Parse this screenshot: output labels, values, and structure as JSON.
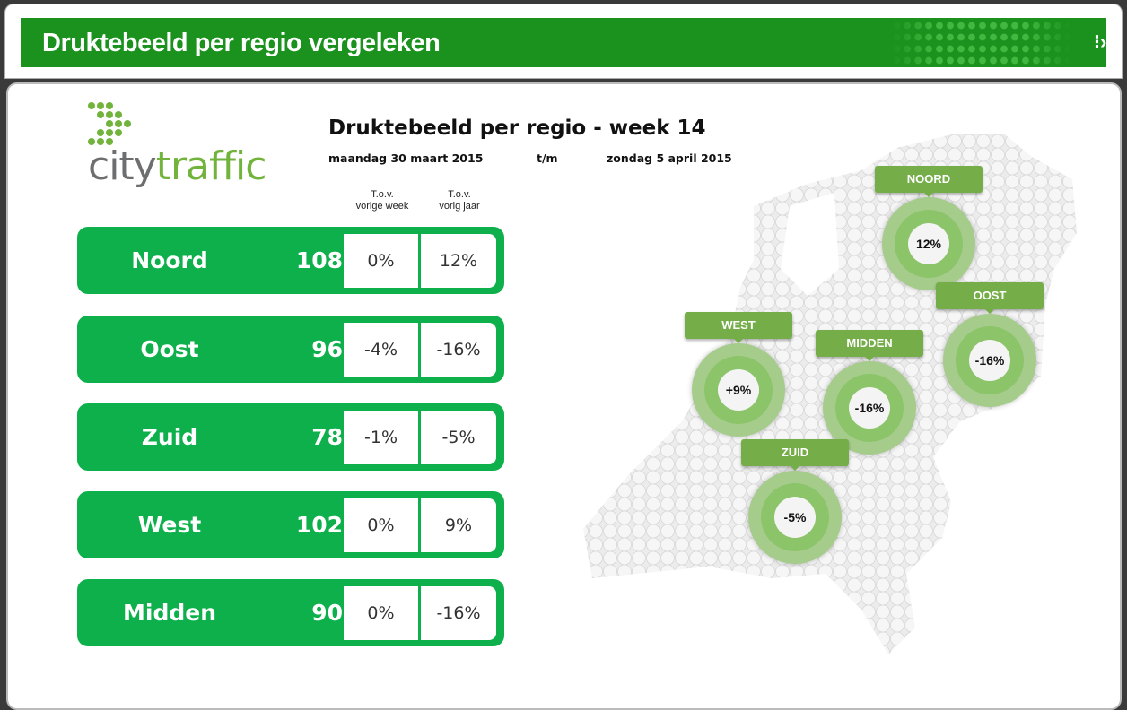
{
  "header": {
    "title": "Druktebeeld per regio vergeleken"
  },
  "logo": {
    "text_city": "city",
    "text_traffic": "traffic"
  },
  "report": {
    "title": "Druktebeeld per regio - week 14",
    "date_from": "maandag 30 maart 2015",
    "date_sep": "t/m",
    "date_to": "zondag 5 april 2015"
  },
  "columns": {
    "prev_week": [
      "T.o.v.",
      "vorige week"
    ],
    "prev_year": [
      "T.o.v.",
      "vorig jaar"
    ]
  },
  "regions": [
    {
      "name": "Noord",
      "value": "108",
      "vs_week": "0%",
      "vs_year": "12%"
    },
    {
      "name": "Oost",
      "value": "96",
      "vs_week": "-4%",
      "vs_year": "-16%"
    },
    {
      "name": "Zuid",
      "value": "78",
      "vs_week": "-1%",
      "vs_year": "-5%"
    },
    {
      "name": "West",
      "value": "102",
      "vs_week": "0%",
      "vs_year": "9%"
    },
    {
      "name": "Midden",
      "value": "90",
      "vs_week": "0%",
      "vs_year": "-16%"
    }
  ],
  "map_badges": [
    {
      "label": "NOORD",
      "value": "12%"
    },
    {
      "label": "OOST",
      "value": "-16%"
    },
    {
      "label": "WEST",
      "value": "+9%"
    },
    {
      "label": "MIDDEN",
      "value": "-16%"
    },
    {
      "label": "ZUID",
      "value": "-5%"
    }
  ],
  "colors": {
    "header_green": "#1a921d",
    "row_green": "#0db04b",
    "badge_green": "#75ad49"
  }
}
